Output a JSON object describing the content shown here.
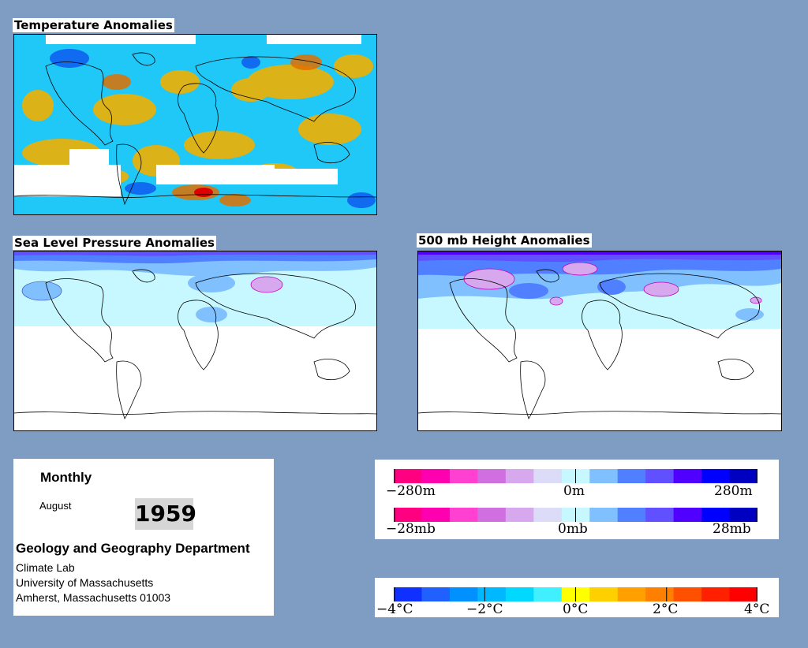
{
  "maps": {
    "temperature": {
      "title": "Temperature Anomalies"
    },
    "slp": {
      "title": "Sea Level Pressure Anomalies"
    },
    "h500": {
      "title": "500 mb Height Anomalies"
    }
  },
  "info": {
    "period": "Monthly",
    "month": "August",
    "year": "1959",
    "department": "Geology and Geography Department",
    "lab": "Climate Lab",
    "university": "University of Massachusetts",
    "address": "Amherst, Massachusetts 01003"
  },
  "height_scale": {
    "min_label": "−280m",
    "mid_label": "0m",
    "max_label": "280m",
    "colors": [
      "#ff0080",
      "#ff00b0",
      "#ff40d0",
      "#d070e0",
      "#d8a8ee",
      "#dcdcf8",
      "#c8f8ff",
      "#80c0ff",
      "#5080ff",
      "#6050ff",
      "#5000ff",
      "#0000ff",
      "#0000c0"
    ]
  },
  "pressure_scale": {
    "min_label": "−28mb",
    "mid_label": "0mb",
    "max_label": "28mb",
    "colors": [
      "#ff0080",
      "#ff00b0",
      "#ff40d0",
      "#d070e0",
      "#d8a8ee",
      "#dcdcf8",
      "#c8f8ff",
      "#80c0ff",
      "#5080ff",
      "#6050ff",
      "#5000ff",
      "#0000ff",
      "#0000c0"
    ]
  },
  "temperature_scale": {
    "labels": [
      "−4°C",
      "−2°C",
      "0°C",
      "2°C",
      "4°C"
    ],
    "colors": [
      "#1030ff",
      "#2060ff",
      "#0090ff",
      "#00b8ff",
      "#00d8ff",
      "#40f0ff",
      "#ffff00",
      "#ffd000",
      "#ffa000",
      "#ff8000",
      "#ff5000",
      "#ff2000",
      "#ff0000"
    ]
  }
}
